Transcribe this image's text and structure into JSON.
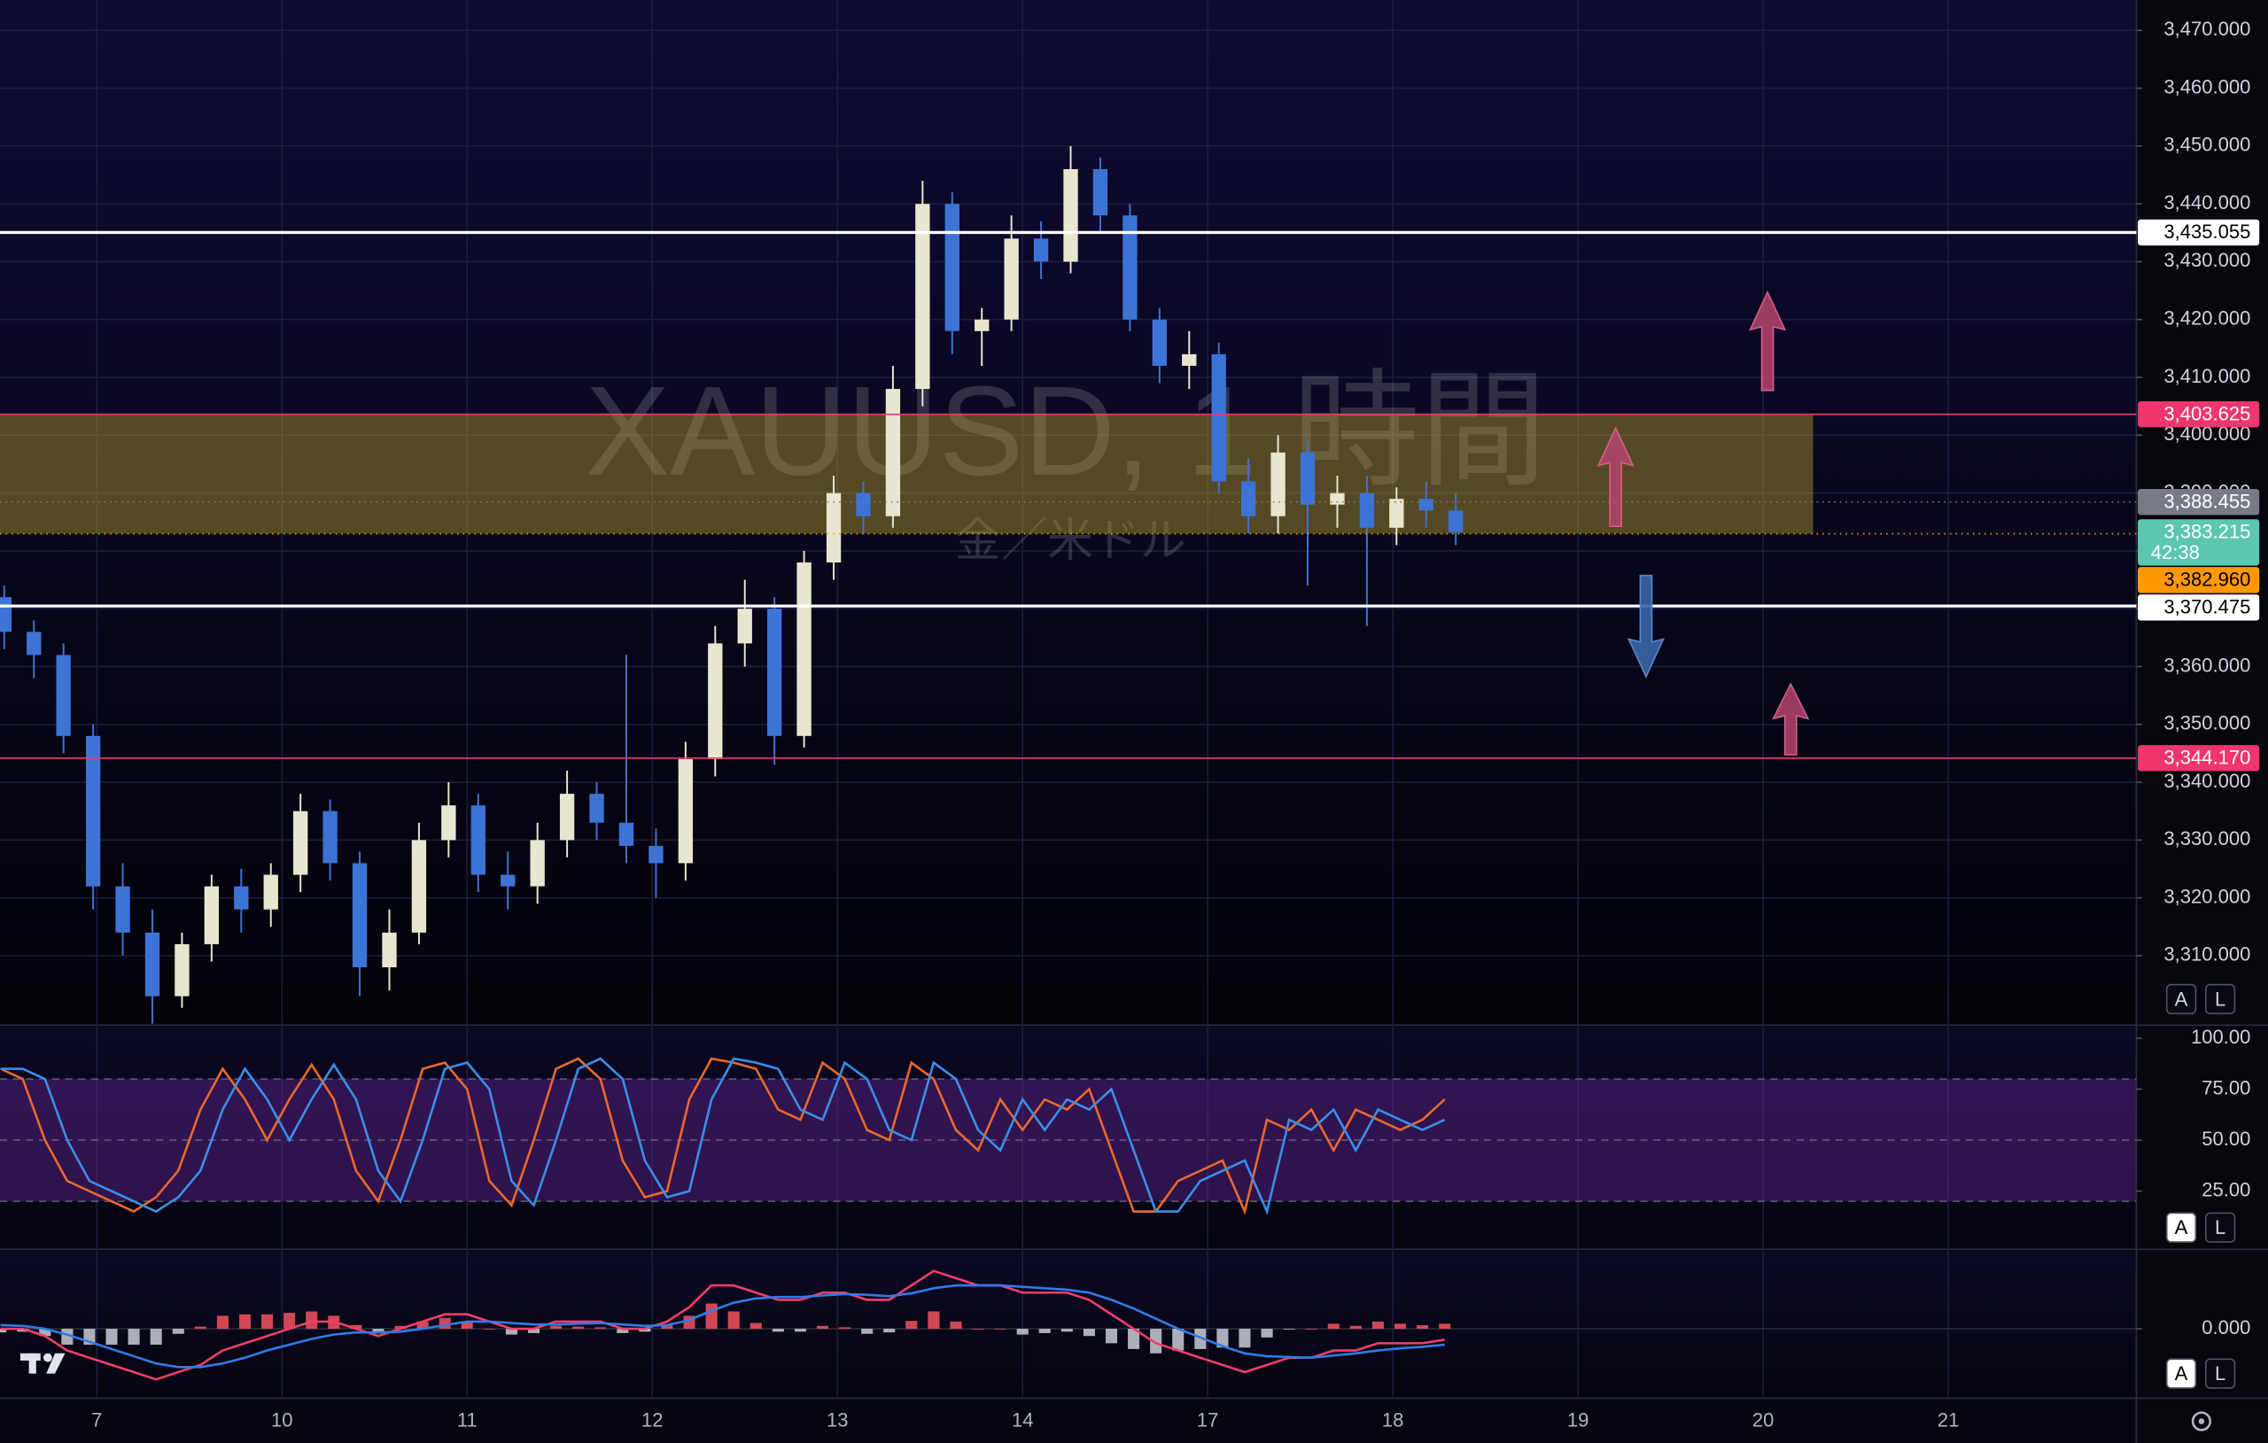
{
  "chart_data": [
    {
      "type": "candlestick",
      "x": [
        -0.5,
        -0.34,
        -0.18,
        -0.02,
        0.14,
        0.3,
        0.46,
        0.62,
        0.78,
        0.94,
        1.1,
        1.26,
        1.42,
        1.58,
        1.74,
        1.9,
        2.06,
        2.22,
        2.38,
        2.54,
        2.7,
        2.86,
        3.02,
        3.18,
        3.34,
        3.5,
        3.66,
        3.82,
        3.98,
        4.14,
        4.3,
        4.46,
        4.62,
        4.78,
        4.94,
        5.1,
        5.26,
        5.42,
        5.58,
        5.74,
        5.9,
        6.06,
        6.22,
        6.38,
        6.54,
        6.7,
        6.86,
        7.02,
        7.18,
        7.34
      ],
      "open": [
        3372,
        3366,
        3362,
        3348,
        3322,
        3314,
        3303,
        3312,
        3322,
        3318,
        3324,
        3335,
        3326,
        3308,
        3314,
        3330,
        3336,
        3324,
        3322,
        3330,
        3338,
        3333,
        3329,
        3326,
        3344,
        3364,
        3370,
        3348,
        3378,
        3390,
        3386,
        3408,
        3440,
        3418,
        3420,
        3434,
        3430,
        3446,
        3438,
        3420,
        3412,
        3414,
        3392,
        3386,
        3397,
        3388,
        3390,
        3384,
        3389,
        3387
      ],
      "high": [
        3374,
        3368,
        3364,
        3350,
        3326,
        3318,
        3314,
        3324,
        3325,
        3326,
        3338,
        3337,
        3328,
        3318,
        3333,
        3340,
        3338,
        3328,
        3333,
        3342,
        3340,
        3362,
        3332,
        3347,
        3367,
        3375,
        3372,
        3380,
        3393,
        3392,
        3412,
        3444,
        3442,
        3422,
        3438,
        3437,
        3450,
        3448,
        3440,
        3422,
        3418,
        3416,
        3396,
        3400,
        3399,
        3393,
        3393,
        3391,
        3392,
        3390
      ],
      "low": [
        3363,
        3358,
        3345,
        3318,
        3310,
        3298,
        3301,
        3309,
        3314,
        3315,
        3321,
        3323,
        3303,
        3304,
        3312,
        3327,
        3321,
        3318,
        3319,
        3327,
        3330,
        3326,
        3320,
        3323,
        3341,
        3360,
        3343,
        3346,
        3375,
        3383,
        3384,
        3405,
        3414,
        3412,
        3418,
        3427,
        3428,
        3435,
        3418,
        3409,
        3408,
        3390,
        3383,
        3383,
        3374,
        3384,
        3367,
        3381,
        3384,
        3381
      ],
      "close": [
        3366,
        3362,
        3348,
        3322,
        3314,
        3303,
        3312,
        3322,
        3318,
        3324,
        3335,
        3326,
        3308,
        3314,
        3330,
        3336,
        3324,
        3322,
        3330,
        3338,
        3333,
        3329,
        3326,
        3344,
        3364,
        3370,
        3348,
        3378,
        3390,
        3386,
        3408,
        3440,
        3418,
        3420,
        3434,
        3430,
        3446,
        3438,
        3420,
        3412,
        3414,
        3392,
        3386,
        3397,
        3388,
        3390,
        3384,
        3389,
        3387,
        3383.215
      ],
      "up_color": "#e9e6cf",
      "down_color": "#3e73d6",
      "xlim": [
        -0.523,
        11.016
      ],
      "ylim": [
        3298.25,
        3475.25
      ],
      "xticks": [
        {
          "value": 0,
          "label": "7"
        },
        {
          "value": 1,
          "label": "10"
        },
        {
          "value": 2,
          "label": "11"
        },
        {
          "value": 3,
          "label": "12"
        },
        {
          "value": 4,
          "label": "13"
        },
        {
          "value": 5,
          "label": "14"
        },
        {
          "value": 6,
          "label": "17"
        },
        {
          "value": 7,
          "label": "18"
        },
        {
          "value": 8,
          "label": "19"
        },
        {
          "value": 9,
          "label": "20"
        },
        {
          "value": 10,
          "label": "21"
        }
      ],
      "yticks": [
        {
          "value": 3310,
          "label": "3,310.000"
        },
        {
          "value": 3320,
          "label": "3,320.000"
        },
        {
          "value": 3330,
          "label": "3,330.000"
        },
        {
          "value": 3340,
          "label": "3,340.000"
        },
        {
          "value": 3350,
          "label": "3,350.000"
        },
        {
          "value": 3360,
          "label": "3,360.000"
        },
        {
          "value": 3370,
          "label": "3,370.000"
        },
        {
          "value": 3380,
          "label": "3,380.000"
        },
        {
          "value": 3390,
          "label": "3,390.000"
        },
        {
          "value": 3400,
          "label": "3,400.000"
        },
        {
          "value": 3410,
          "label": "3,410.000"
        },
        {
          "value": 3420,
          "label": "3,420.000"
        },
        {
          "value": 3430,
          "label": "3,430.000"
        },
        {
          "value": 3440,
          "label": "3,440.000"
        },
        {
          "value": 3450,
          "label": "3,450.000"
        },
        {
          "value": 3460,
          "label": "3,460.000"
        },
        {
          "value": 3470,
          "label": "3,470.000"
        }
      ],
      "grid": true,
      "zone": {
        "from": 3383,
        "to": 3403.625,
        "x_end": 9.27,
        "color": "rgba(190,165,45,0.42)"
      },
      "price_lines": [
        {
          "value": 3435.055,
          "label": "3,435.055",
          "color": "#ffffff",
          "text_color": "#000000",
          "style": "solid",
          "width": 2
        },
        {
          "value": 3403.625,
          "label": "3,403.625",
          "color": "#f0366c",
          "text_color": "#ffffff",
          "style": "solid",
          "width": 1
        },
        {
          "value": 3388.455,
          "label": "3,388.455",
          "color": "#787b86",
          "text_color": "#ffffff",
          "style": "dotted",
          "width": 1
        },
        {
          "value": 3383.215,
          "label": "3,383.215",
          "sublabel": "42:38",
          "color": "#5cc7ae",
          "text_color": "#ffffff",
          "style": "none",
          "width": 1
        },
        {
          "value": 3382.96,
          "label": "3,382.960",
          "color": "#ff9800",
          "text_color": "#000000",
          "style": "dotted",
          "width": 1
        },
        {
          "value": 3370.475,
          "label": "3,370.475",
          "color": "#ffffff",
          "text_color": "#000000",
          "style": "solid",
          "width": 2
        },
        {
          "value": 3344.17,
          "label": "3,344.170",
          "color": "#f0366c",
          "text_color": "#ffffff",
          "style": "solid",
          "width": 1
        }
      ]
    },
    {
      "type": "line",
      "x": [
        -0.52,
        -0.4,
        -0.28,
        -0.16,
        -0.04,
        0.08,
        0.2,
        0.32,
        0.44,
        0.56,
        0.68,
        0.8,
        0.92,
        1.04,
        1.16,
        1.28,
        1.4,
        1.52,
        1.64,
        1.76,
        1.88,
        2.0,
        2.12,
        2.24,
        2.36,
        2.48,
        2.6,
        2.72,
        2.84,
        2.96,
        3.08,
        3.2,
        3.32,
        3.44,
        3.56,
        3.68,
        3.8,
        3.92,
        4.04,
        4.16,
        4.28,
        4.4,
        4.52,
        4.64,
        4.76,
        4.88,
        5.0,
        5.12,
        5.24,
        5.36,
        5.48,
        5.6,
        5.72,
        5.84,
        5.96,
        6.08,
        6.2,
        6.32,
        6.44,
        6.56,
        6.68,
        6.8,
        6.92,
        7.04,
        7.16,
        7.28
      ],
      "series": [
        {
          "color": "#e8692c",
          "values": [
            85,
            80,
            50,
            30,
            25,
            20,
            15,
            22,
            35,
            65,
            85,
            70,
            50,
            70,
            87,
            70,
            35,
            20,
            50,
            85,
            88,
            75,
            30,
            18,
            50,
            85,
            90,
            80,
            40,
            22,
            25,
            70,
            90,
            88,
            85,
            65,
            60,
            88,
            80,
            55,
            50,
            88,
            80,
            55,
            45,
            70,
            55,
            70,
            65,
            75,
            45,
            15,
            15,
            30,
            35,
            40,
            15,
            60,
            55,
            65,
            45,
            65,
            60,
            55,
            60,
            70
          ]
        },
        {
          "color": "#3b8ee8",
          "values": [
            85,
            85,
            80,
            50,
            30,
            25,
            20,
            15,
            22,
            35,
            65,
            85,
            70,
            50,
            70,
            87,
            70,
            35,
            20,
            50,
            85,
            88,
            75,
            30,
            18,
            50,
            85,
            90,
            80,
            40,
            22,
            25,
            70,
            90,
            88,
            85,
            65,
            60,
            88,
            80,
            55,
            50,
            88,
            80,
            55,
            45,
            70,
            55,
            70,
            65,
            75,
            45,
            15,
            15,
            30,
            35,
            40,
            15,
            60,
            55,
            65,
            45,
            65,
            60,
            55,
            60
          ]
        }
      ],
      "xlim": [
        -0.523,
        11.016
      ],
      "ylim": [
        -2.1,
        105.7
      ],
      "yticks": [
        {
          "value": 25,
          "label": "25.00"
        },
        {
          "value": 50,
          "label": "50.00"
        },
        {
          "value": 75,
          "label": "75.00"
        },
        {
          "value": 100,
          "label": "100.00"
        }
      ],
      "bands": [
        20,
        50,
        80
      ],
      "band_fill": [
        20,
        80
      ],
      "band_color": "rgba(110,40,160,0.4)"
    },
    {
      "type": "combo",
      "x": [
        -0.52,
        -0.4,
        -0.28,
        -0.16,
        -0.04,
        0.08,
        0.2,
        0.32,
        0.44,
        0.56,
        0.68,
        0.8,
        0.92,
        1.04,
        1.16,
        1.28,
        1.4,
        1.52,
        1.64,
        1.76,
        1.88,
        2.0,
        2.12,
        2.24,
        2.36,
        2.48,
        2.6,
        2.72,
        2.84,
        2.96,
        3.08,
        3.2,
        3.32,
        3.44,
        3.56,
        3.68,
        3.8,
        3.92,
        4.04,
        4.16,
        4.28,
        4.4,
        4.52,
        4.64,
        4.76,
        4.88,
        5.0,
        5.12,
        5.24,
        5.36,
        5.48,
        5.6,
        5.72,
        5.84,
        5.96,
        6.08,
        6.2,
        6.32,
        6.44,
        6.56,
        6.68,
        6.8,
        6.92,
        7.04,
        7.16,
        7.28
      ],
      "histogram": {
        "up_color": "#f7525f",
        "down_color": "#c9ccd6",
        "values": [
          -0.5,
          -0.4,
          -1,
          -2.2,
          -2.2,
          -2.2,
          -2.2,
          -2.2,
          -0.7,
          0.3,
          1.8,
          2,
          2,
          2.2,
          2.4,
          1.8,
          0.5,
          -0.5,
          0.4,
          1,
          1.5,
          1,
          0,
          -0.8,
          -0.6,
          0.4,
          0.3,
          0.2,
          -0.6,
          -0.4,
          0.5,
          1.8,
          3.5,
          2.4,
          0.8,
          -0.4,
          -0.4,
          0.4,
          0.2,
          -0.7,
          -0.5,
          1.1,
          2.4,
          1,
          0,
          0,
          -0.8,
          -0.6,
          -0.4,
          -1,
          -2,
          -2.8,
          -3.4,
          -3,
          -2.8,
          -2.6,
          -2.6,
          -1.2,
          -0.1,
          0,
          0.7,
          0.4,
          1,
          0.7,
          0.5,
          0.7
        ]
      },
      "series": [
        {
          "color": "#f23e6a",
          "values": [
            0,
            0,
            -1,
            -3,
            -4,
            -5,
            -6,
            -7,
            -6,
            -5,
            -3,
            -2,
            -1,
            0,
            1,
            1,
            0,
            -1,
            0,
            1,
            2,
            2,
            1,
            0,
            0,
            1,
            1,
            1,
            0,
            0,
            1,
            3,
            6,
            6,
            5,
            4,
            4,
            5,
            5,
            4,
            4,
            6,
            8,
            7,
            6,
            6,
            5,
            5,
            5,
            4,
            2,
            0,
            -2,
            -3,
            -4,
            -5,
            -6,
            -5,
            -4,
            -4,
            -3,
            -3,
            -2,
            -2,
            -2,
            -1.5
          ]
        },
        {
          "color": "#2f7be8",
          "values": [
            0.5,
            0.4,
            0,
            -0.8,
            -1.8,
            -2.8,
            -3.8,
            -4.8,
            -5.3,
            -5.3,
            -4.8,
            -4,
            -3,
            -2.2,
            -1.4,
            -0.8,
            -0.5,
            -0.5,
            -0.4,
            0,
            0.5,
            1,
            1,
            0.8,
            0.6,
            0.6,
            0.7,
            0.8,
            0.6,
            0.4,
            0.5,
            1.2,
            2.5,
            3.6,
            4.2,
            4.4,
            4.4,
            4.6,
            4.8,
            4.7,
            4.5,
            4.9,
            5.6,
            6,
            6,
            6,
            5.8,
            5.6,
            5.4,
            5,
            4,
            2.8,
            1.4,
            0,
            -1.2,
            -2.4,
            -3.4,
            -3.8,
            -3.9,
            -4,
            -3.7,
            -3.4,
            -3,
            -2.7,
            -2.5,
            -2.2
          ]
        }
      ],
      "xlim": [
        -0.523,
        11.016
      ],
      "ylim": [
        -9.4,
        10.6
      ],
      "yticks": [
        {
          "value": 0,
          "label": "0.000"
        }
      ]
    }
  ],
  "ui": {
    "watermark": {
      "title": "XAUUSD, 1 時間",
      "subtitle": "金／米ドル"
    },
    "scale_buttons": [
      [
        "A",
        "L"
      ],
      [
        "A",
        "L"
      ],
      [
        "A",
        "L"
      ]
    ]
  }
}
